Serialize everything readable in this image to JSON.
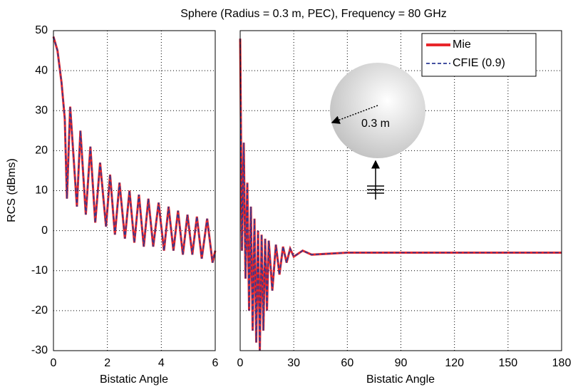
{
  "chart_data": [
    {
      "type": "line",
      "title": "Sphere (Radius = 0.3 m, PEC), Frequency = 80 GHz",
      "y_label": "RCS (dBms)",
      "x_label": "Bistatic Angle",
      "x": [
        0,
        0.15,
        0.3,
        0.42,
        0.5,
        0.62,
        0.87,
        1.0,
        1.2,
        1.37,
        1.55,
        1.73,
        1.95,
        2.1,
        2.28,
        2.45,
        2.65,
        2.82,
        3.0,
        3.17,
        3.35,
        3.52,
        3.7,
        3.9,
        4.1,
        4.27,
        4.45,
        4.62,
        4.8,
        4.97,
        5.15,
        5.32,
        5.5,
        5.7,
        5.9,
        6.0
      ],
      "series": [
        {
          "color": "#e8262b",
          "values": [
            48.5,
            45,
            37,
            28,
            8,
            31,
            6,
            25,
            4,
            21,
            2,
            17,
            1,
            14,
            -1,
            12,
            -2,
            10,
            -3,
            9,
            -4,
            8,
            -4,
            7,
            -5,
            6,
            -5,
            5,
            -6,
            4,
            -6,
            3.5,
            -7,
            3,
            -8,
            -5
          ]
        },
        {
          "color": "#2b3a94",
          "values": [
            48.5,
            45,
            37,
            28,
            8,
            31,
            6,
            25,
            4,
            21,
            2,
            17,
            1,
            14,
            -1,
            12,
            -2,
            10,
            -3,
            9,
            -4,
            8,
            -4,
            7,
            -5,
            6,
            -5,
            5,
            -6,
            4,
            -6,
            3.5,
            -7,
            3,
            -8,
            -5
          ]
        }
      ],
      "xlim": [
        0,
        6
      ],
      "xticks": [
        0,
        2,
        4,
        6
      ],
      "ylim": [
        -30,
        50
      ],
      "yticks": [
        -30,
        -20,
        -10,
        0,
        10,
        20,
        30,
        40,
        50
      ],
      "grid": true
    },
    {
      "type": "line",
      "x_label": "Bistatic Angle",
      "annotations": [
        "0.3 m"
      ],
      "legend": "upper right",
      "x": [
        0,
        1,
        2,
        3,
        4,
        5,
        6,
        7,
        8,
        9,
        10,
        11,
        12,
        13,
        14,
        15,
        16,
        18,
        20,
        22,
        24,
        26,
        28,
        30,
        35,
        40,
        60,
        90,
        120,
        150,
        180
      ],
      "series": [
        {
          "name": "Mie",
          "color": "#e8262b",
          "values": [
            48,
            -5,
            22,
            -12,
            12,
            -20,
            6,
            -25,
            3,
            -28,
            0,
            -30,
            -1,
            -25,
            -2,
            -20,
            -2.5,
            -15,
            -3.5,
            -11,
            -4,
            -8,
            -4.5,
            -6.5,
            -5,
            -6,
            -5.5,
            -5.5,
            -5.5,
            -5.5,
            -5.5
          ]
        },
        {
          "name": "CFIE (0.9)",
          "color": "#2b3a94",
          "values": [
            48,
            -5,
            22,
            -12,
            12,
            -20,
            6,
            -25,
            3,
            -28,
            0,
            -30,
            -1,
            -25,
            -2,
            -20,
            -2.5,
            -15,
            -3.5,
            -11,
            -4,
            -8,
            -4.5,
            -6.5,
            -5,
            -6,
            -5.5,
            -5.5,
            -5.5,
            -5.5,
            -5.5
          ]
        }
      ],
      "xlim": [
        0,
        180
      ],
      "xticks": [
        0,
        30,
        60,
        90,
        120,
        150,
        180
      ],
      "ylim": [
        -30,
        50
      ],
      "yticks": [
        -30,
        -20,
        -10,
        0,
        10,
        20,
        30,
        40,
        50
      ],
      "grid": true
    }
  ]
}
